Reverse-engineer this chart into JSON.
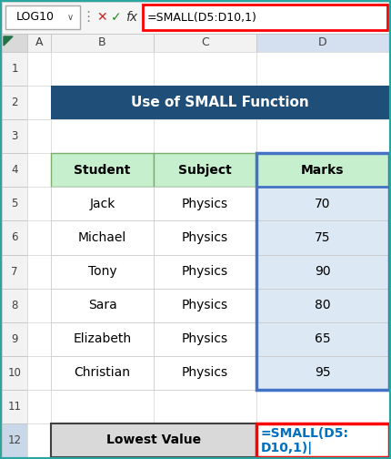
{
  "title": "Use of SMALL Function",
  "title_bg": "#1F4E79",
  "title_fg": "#FFFFFF",
  "header_bg": "#C6EFCE",
  "header_border_color": "#7AAF6A",
  "header_cells": [
    "Student",
    "Subject",
    "Marks"
  ],
  "data_rows": [
    [
      "Jack",
      "Physics",
      "70"
    ],
    [
      "Michael",
      "Physics",
      "75"
    ],
    [
      "Tony",
      "Physics",
      "90"
    ],
    [
      "Sara",
      "Physics",
      "80"
    ],
    [
      "Elizabeth",
      "Physics",
      "65"
    ],
    [
      "Christian",
      "Physics",
      "95"
    ]
  ],
  "marks_col_bg": "#DCE9F5",
  "bottom_label": "Lowest Value",
  "formula_bar_text": "=SMALL(D5:D10,1)",
  "formula_line1": "=SMALL(D5:",
  "formula_line2": "D10,1)|",
  "name_box": "LOG10",
  "col_labels": [
    "A",
    "B",
    "C",
    "D"
  ],
  "excel_bg": "#FFFFFF",
  "teal_border": "#2AA5A0",
  "grid_color": "#D0D0D0",
  "marks_border_color": "#4472C4",
  "formula_box_border": "#FF0000",
  "formula_bar_border": "#FF0000",
  "formula_text_color": "#0070C0",
  "bottom_cell_bg": "#D9D9D9",
  "bottom_cell_border": "#404040",
  "row_num_bg": "#F2F2F2",
  "row_num_bg_selected": "#C8D8E8",
  "col_hdr_bg": "#F2F2F2",
  "col_hdr_bg_selected": "#D4DFF0",
  "formula_bar_bg": "#FFFFFF",
  "toolbar_bg": "#F5F5F5",
  "watermark_color": "#C0C8D8",
  "watermark_logo_color": "#D0D8E8"
}
